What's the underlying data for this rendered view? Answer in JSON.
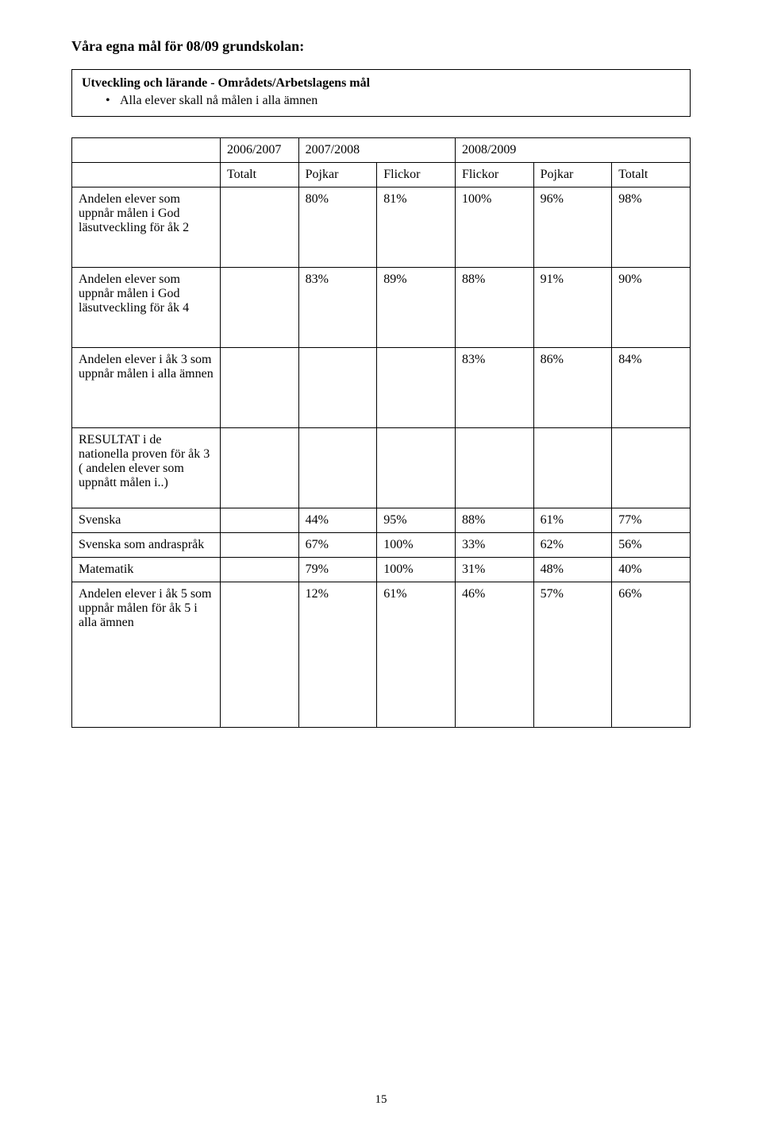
{
  "title": "Våra egna mål för 08/09 grundskolan:",
  "box": {
    "heading": "Utveckling och lärande - Områdets/Arbetslagens mål",
    "bullet": "Alla elever skall nå målen i alla ämnen"
  },
  "years": {
    "y1": "2006/2007",
    "y2": "2007/2008",
    "y3": "2008/2009"
  },
  "cols": {
    "c1": "Totalt",
    "c2": "Pojkar",
    "c3": "Flickor",
    "c4": "Flickor",
    "c5": "Pojkar",
    "c6": "Totalt"
  },
  "rows": {
    "r1": {
      "label": "Andelen elever som uppnår målen i God läsutveckling för åk 2",
      "v": [
        "",
        "80%",
        "81%",
        "100%",
        "96%",
        "98%"
      ]
    },
    "r2": {
      "label": "Andelen elever som uppnår målen i God läsutveckling för åk 4",
      "v": [
        "",
        "83%",
        "89%",
        "88%",
        "91%",
        "90%"
      ]
    },
    "r3": {
      "label": "Andelen elever i åk 3 som uppnår målen i alla ämnen",
      "v": [
        "",
        "",
        "",
        "83%",
        "86%",
        "84%"
      ]
    },
    "r4": {
      "label": "RESULTAT i de nationella proven för åk 3 ( andelen elever som uppnått målen i..)",
      "v": [
        "",
        "",
        "",
        "",
        "",
        ""
      ]
    },
    "r5": {
      "label": "Svenska",
      "v": [
        "",
        "44%",
        "95%",
        "88%",
        "61%",
        "77%"
      ]
    },
    "r6": {
      "label": "Svenska som andraspråk",
      "v": [
        "",
        "67%",
        "100%",
        "33%",
        "62%",
        "56%"
      ]
    },
    "r7": {
      "label": "Matematik",
      "v": [
        "",
        "79%",
        "100%",
        "31%",
        "48%",
        "40%"
      ]
    },
    "r8": {
      "label": "Andelen elever i åk 5 som uppnår målen för åk 5 i alla ämnen",
      "v": [
        "",
        "12%",
        "61%",
        "46%",
        "57%",
        "66%"
      ]
    }
  },
  "page_number": "15"
}
